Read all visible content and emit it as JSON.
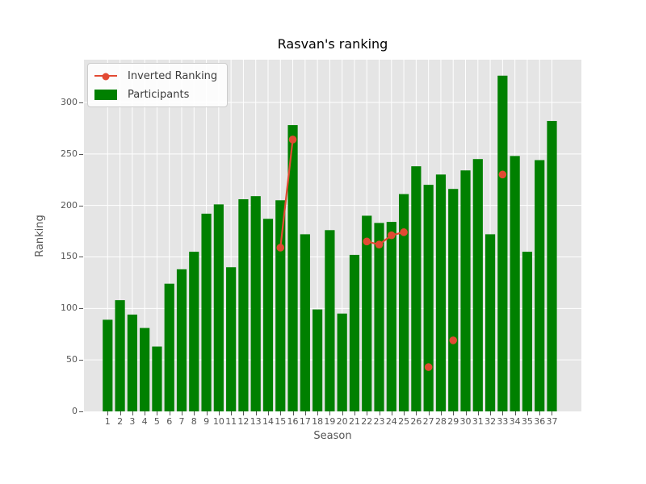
{
  "title": "Rasvan's ranking",
  "legend": {
    "items": [
      {
        "label": "Inverted Ranking",
        "sample": "line-with-circle-marker",
        "color": "#E24A33"
      },
      {
        "label": "Participants",
        "sample": "filled-patch",
        "color": "#008000"
      }
    ]
  },
  "chart_data": {
    "type": "bar",
    "title": "Rasvan's ranking",
    "xlabel": "Season",
    "ylabel": "Ranking",
    "categories": [
      1,
      2,
      3,
      4,
      5,
      6,
      7,
      8,
      9,
      10,
      11,
      12,
      13,
      14,
      15,
      16,
      17,
      18,
      19,
      20,
      21,
      22,
      23,
      24,
      25,
      26,
      27,
      28,
      29,
      30,
      31,
      32,
      33,
      34,
      35,
      36,
      37
    ],
    "series": [
      {
        "name": "Participants",
        "type": "bar",
        "color": "#008000",
        "values": [
          89,
          108,
          94,
          81,
          63,
          124,
          138,
          155,
          192,
          201,
          140,
          206,
          209,
          187,
          205,
          278,
          172,
          99,
          176,
          95,
          152,
          190,
          183,
          184,
          211,
          238,
          220,
          230,
          216,
          234,
          245,
          172,
          326,
          248,
          155,
          244,
          282
        ]
      },
      {
        "name": "Inverted Ranking",
        "type": "line",
        "color": "#E24A33",
        "marker": "circle",
        "points": [
          [
            15,
            159
          ],
          [
            16,
            264
          ],
          [
            22,
            165
          ],
          [
            23,
            162
          ],
          [
            24,
            171
          ],
          [
            25,
            174
          ],
          [
            27,
            43
          ],
          [
            29,
            69
          ],
          [
            33,
            230
          ]
        ]
      }
    ],
    "yticks": [
      0,
      50,
      100,
      150,
      200,
      250,
      300
    ],
    "ylim": [
      0,
      341.5
    ],
    "grid": true,
    "grid_color": "#FFFFFF",
    "plot_bg": "#E5E5E5",
    "legend_position": "upper left"
  }
}
